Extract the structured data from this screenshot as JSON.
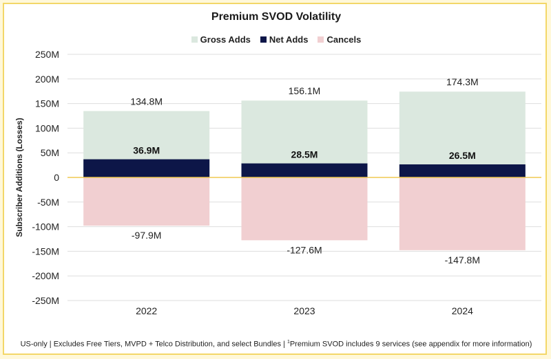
{
  "chart_data": {
    "type": "bar",
    "title": "Premium SVOD Volatility",
    "ylabel": "Subscriber Additions (Losses)",
    "xlabel": "",
    "categories": [
      "2022",
      "2023",
      "2024"
    ],
    "series": [
      {
        "name": "Gross Adds",
        "values": [
          134.8,
          156.1,
          174.3
        ],
        "labels": [
          "134.8M",
          "156.1M",
          "174.3M"
        ],
        "color": "#dbe8df"
      },
      {
        "name": "Net Adds",
        "values": [
          36.9,
          28.5,
          26.5
        ],
        "labels": [
          "36.9M",
          "28.5M",
          "26.5M"
        ],
        "color": "#0d1648"
      },
      {
        "name": "Cancels",
        "values": [
          -97.9,
          -127.6,
          -147.8
        ],
        "labels": [
          "-97.9M",
          "-127.6M",
          "-147.8M"
        ],
        "color": "#f1cfd1"
      }
    ],
    "ylim": [
      -250,
      250
    ],
    "yticks": [
      250,
      200,
      150,
      100,
      50,
      0,
      -50,
      -100,
      -150,
      -200,
      -250
    ],
    "ytick_labels": [
      "250M",
      "200M",
      "150M",
      "100M",
      "50M",
      "0",
      "-50M",
      "-100M",
      "-150M",
      "-200M",
      "-250M"
    ],
    "zero_line_color": "#f0c850",
    "legend_position": "top",
    "grid": true
  },
  "footnote": {
    "before": "US-only | Excludes Free Tiers, MVPD + Telco Distribution, and select Bundles | ",
    "sup": "1",
    "after": "Premium SVOD includes 9 services (see appendix for more information)"
  }
}
